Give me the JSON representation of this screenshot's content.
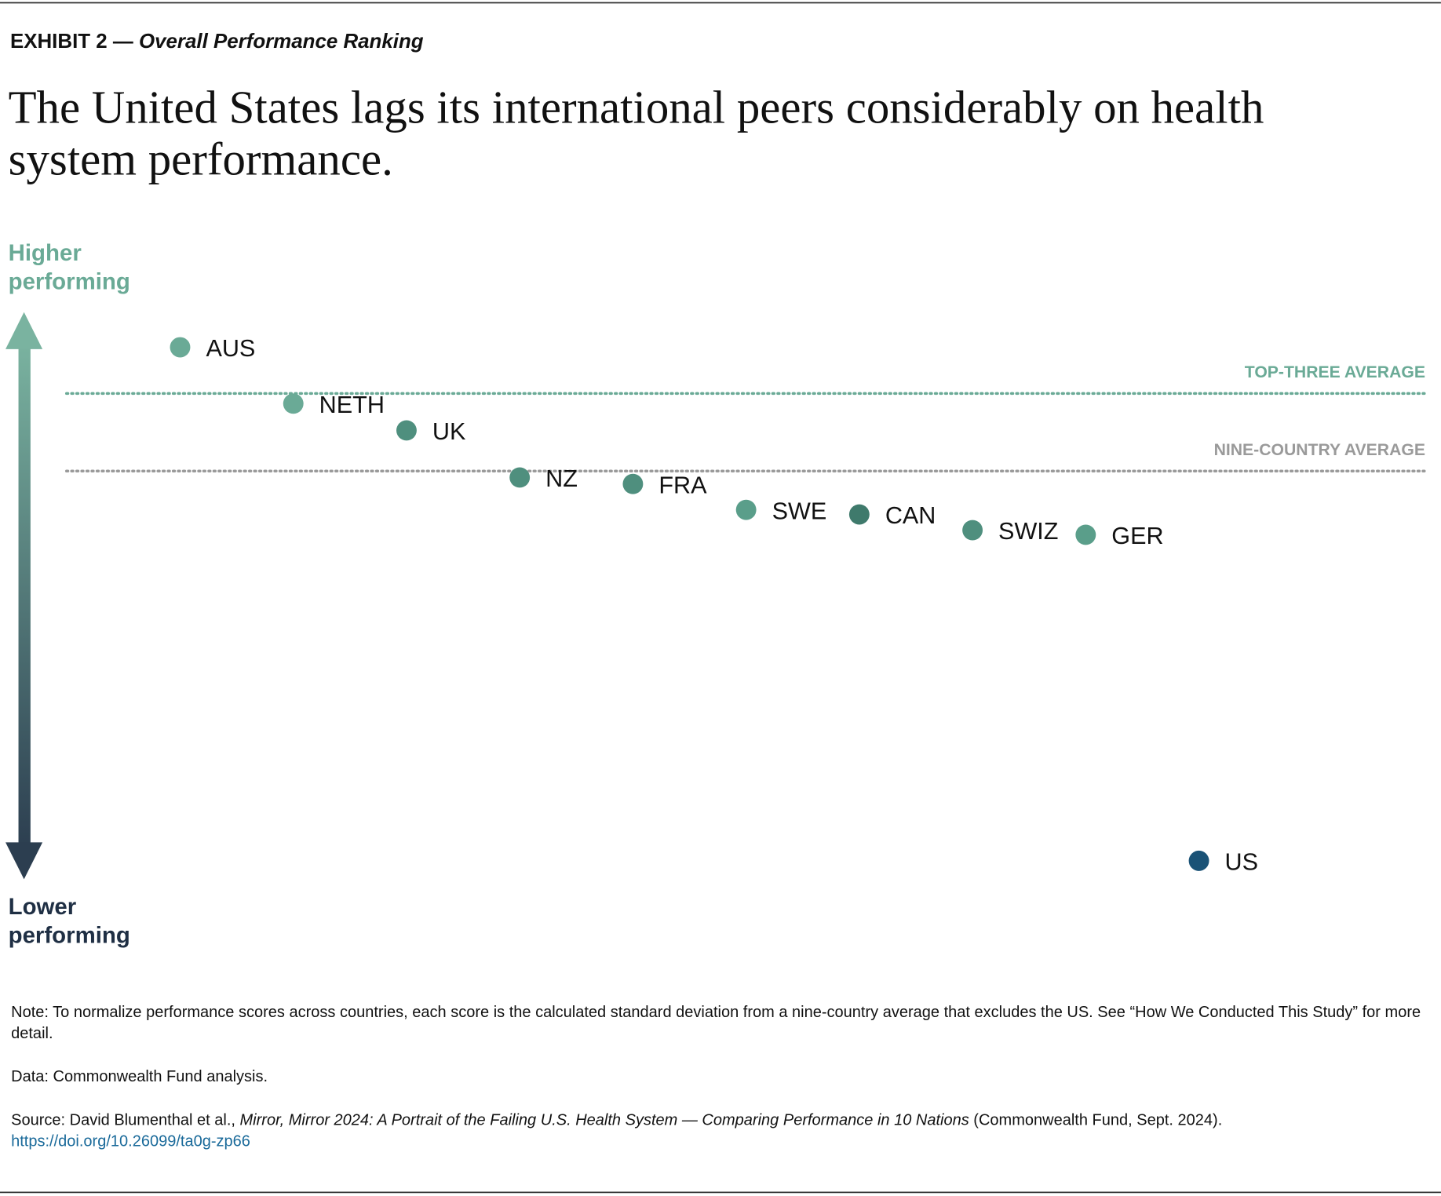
{
  "header": {
    "exhibit": "EXHIBIT 2 —",
    "exhibit_title": "Overall Performance Ranking",
    "headline": "The United States lags its international peers considerably on health system performance."
  },
  "chart_data": {
    "type": "dot",
    "axis_labels": {
      "top": "Higher performing",
      "bottom": "Lower performing"
    },
    "categories": [
      "AUS",
      "NETH",
      "UK",
      "NZ",
      "FRA",
      "SWE",
      "CAN",
      "SWIZ",
      "GER",
      "US"
    ],
    "values": [
      1.34,
      0.73,
      0.44,
      -0.07,
      -0.14,
      -0.42,
      -0.47,
      -0.64,
      -0.69,
      -4.22
    ],
    "colors": [
      "#6aaa96",
      "#6aaa96",
      "#4f8f7e",
      "#4f8f7e",
      "#4f8f7e",
      "#5a9e8a",
      "#3f7a6c",
      "#4f8f7e",
      "#5a9e8a",
      "#1a5276"
    ],
    "reference_lines": [
      {
        "label": "TOP-THREE AVERAGE",
        "value": 0.84,
        "color": "#6aaa96"
      },
      {
        "label": "NINE-COUNTRY AVERAGE",
        "value": 0,
        "color": "#9a9a9a"
      }
    ],
    "ylim": [
      -4.4,
      1.7
    ]
  },
  "footer": {
    "note": "Note: To normalize performance scores across countries, each score is the calculated standard deviation from a nine-country average that excludes the US. See “How We Conducted This Study” for more detail.",
    "data": "Data: Commonwealth Fund analysis.",
    "source_prefix": "Source: David Blumenthal et al.,",
    "source_title": "Mirror, Mirror 2024: A Portrait of the Failing U.S. Health System — Comparing Performance in 10 Nations",
    "source_suffix": "(Commonwealth Fund, Sept. 2024).",
    "link": "https://doi.org/10.26099/ta0g-zp66"
  }
}
